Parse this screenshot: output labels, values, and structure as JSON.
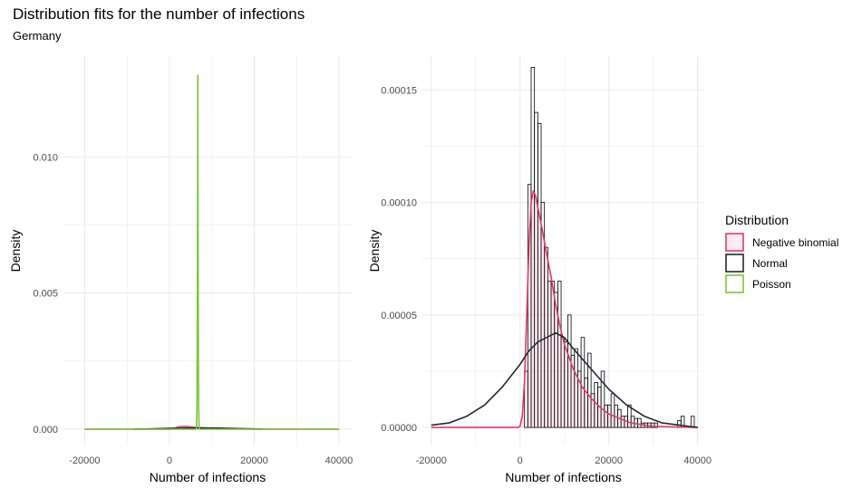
{
  "header": {
    "title": "Distribution fits for the number of infections",
    "subtitle": "Germany"
  },
  "colors": {
    "negbin": "#df3b6a",
    "normal": "#1f2a3a",
    "poisson": "#7fc43a",
    "grid": "#ebebeb"
  },
  "legend": {
    "title": "Distribution",
    "items": [
      {
        "label": "Negative binomial",
        "color_key": "negbin"
      },
      {
        "label": "Normal",
        "color_key": "normal"
      },
      {
        "label": "Poisson",
        "color_key": "poisson"
      }
    ]
  },
  "chart_data": [
    {
      "type": "line",
      "xlabel": "Number of infections",
      "ylabel": "Density",
      "xlim": [
        -25000,
        43000
      ],
      "ylim": [
        -0.0006,
        0.0137
      ],
      "x_ticks": [
        -20000,
        0,
        20000,
        40000
      ],
      "x_tick_labels": [
        "-20000",
        "0",
        "20000",
        "40000"
      ],
      "y_ticks": [
        0,
        0.005,
        0.01
      ],
      "y_tick_labels": [
        "0.000",
        "0.005",
        "0.010"
      ],
      "grid": true,
      "series": [
        {
          "color_key": "poisson",
          "x": [
            -20000,
            6300,
            6400,
            6500,
            6550,
            6600,
            6650,
            6700,
            6750,
            6800,
            6850,
            6900,
            7000,
            7100,
            40000
          ],
          "y": [
            0,
            0,
            0.0001,
            0.0008,
            0.0025,
            0.0051,
            0.0082,
            0.013,
            0.0081,
            0.005,
            0.0025,
            0.0008,
            0.0001,
            0,
            0
          ]
        },
        {
          "color_key": "negbin",
          "x": [
            -20000,
            0,
            1000,
            2000,
            3000,
            4000,
            6000,
            8000,
            10000,
            14000,
            20000,
            30000,
            40000
          ],
          "y": [
            0,
            0,
            2e-05,
            8e-05,
            0.0001,
            9.5e-05,
            7e-05,
            4.5e-05,
            3e-05,
            1.2e-05,
            3e-06,
            0,
            0
          ]
        },
        {
          "color_key": "normal",
          "x": [
            -8500,
            -4000,
            0,
            4000,
            8000,
            12000,
            16000,
            20000,
            22000
          ],
          "y": [
            0,
            1.5e-05,
            3e-05,
            4e-05,
            4.3e-05,
            3.7e-05,
            2.2e-05,
            8e-06,
            0
          ]
        }
      ]
    },
    {
      "type": "bar",
      "xlabel": "Number of infections",
      "ylabel": "Density",
      "xlim": [
        -22000,
        41500
      ],
      "ylim": [
        -8e-06,
        0.000165
      ],
      "x_ticks": [
        -20000,
        0,
        20000,
        40000
      ],
      "x_tick_labels": [
        "-20000",
        "0",
        "20000",
        "40000"
      ],
      "y_ticks": [
        0,
        5e-05,
        0.0001,
        0.00015
      ],
      "y_tick_labels": [
        "0.00000",
        "0.00005",
        "0.00010",
        "0.00015"
      ],
      "grid": true,
      "bin_width": 750,
      "bin_start": 1000,
      "histogram": [
        2.5e-05,
        0.000108,
        0.00016,
        0.00014,
        0.000135,
        0.0001,
        8e-05,
        6.5e-05,
        6.5e-05,
        6e-05,
        6.5e-05,
        4e-05,
        3.8e-05,
        5e-05,
        3.2e-05,
        3.5e-05,
        2.5e-05,
        4e-05,
        2.2e-05,
        3.3e-05,
        1.5e-05,
        2e-05,
        1.8e-05,
        2.5e-05,
        1e-05,
        1e-05,
        1.5e-05,
        1e-05,
        8e-06,
        5e-06,
        5e-06,
        1e-05,
        5e-06,
        4e-06,
        4e-06,
        2e-06,
        2e-06,
        2e-06,
        2e-06,
        2e-06,
        0,
        0,
        0,
        0,
        0,
        0,
        3e-06,
        5e-06,
        0,
        0,
        5e-06,
        0
      ],
      "series": [
        {
          "color_key": "negbin",
          "x": [
            -20000,
            -2000,
            -500,
            0,
            500,
            1000,
            1500,
            2000,
            2500,
            3000,
            3500,
            4000,
            5000,
            6000,
            7000,
            8000,
            9000,
            10000,
            12000,
            14000,
            16000,
            18000,
            20000,
            25000,
            30000,
            40000
          ],
          "y": [
            0,
            0,
            0,
            5e-07,
            5e-06,
            2e-05,
            5e-05,
            8e-05,
            0.0001,
            0.000105,
            0.000103,
            9.8e-05,
            8.8e-05,
            7.7e-05,
            6.7e-05,
            5.5e-05,
            4.5e-05,
            3.7e-05,
            2.6e-05,
            1.8e-05,
            1.3e-05,
            9e-06,
            6e-06,
            2e-06,
            5e-07,
            0
          ]
        },
        {
          "color_key": "normal",
          "x": [
            -20000,
            -16000,
            -12000,
            -8000,
            -4000,
            0,
            2000,
            4000,
            6000,
            8000,
            10000,
            12000,
            16000,
            20000,
            24000,
            28000,
            32000,
            36000,
            40000
          ],
          "y": [
            1e-06,
            2e-06,
            5e-06,
            1e-05,
            1.8e-05,
            2.8e-05,
            3.4e-05,
            3.8e-05,
            4e-05,
            4.2e-05,
            4e-05,
            3.5e-05,
            2.6e-05,
            1.7e-05,
            1e-05,
            5e-06,
            2e-06,
            1e-06,
            0
          ]
        }
      ]
    }
  ]
}
